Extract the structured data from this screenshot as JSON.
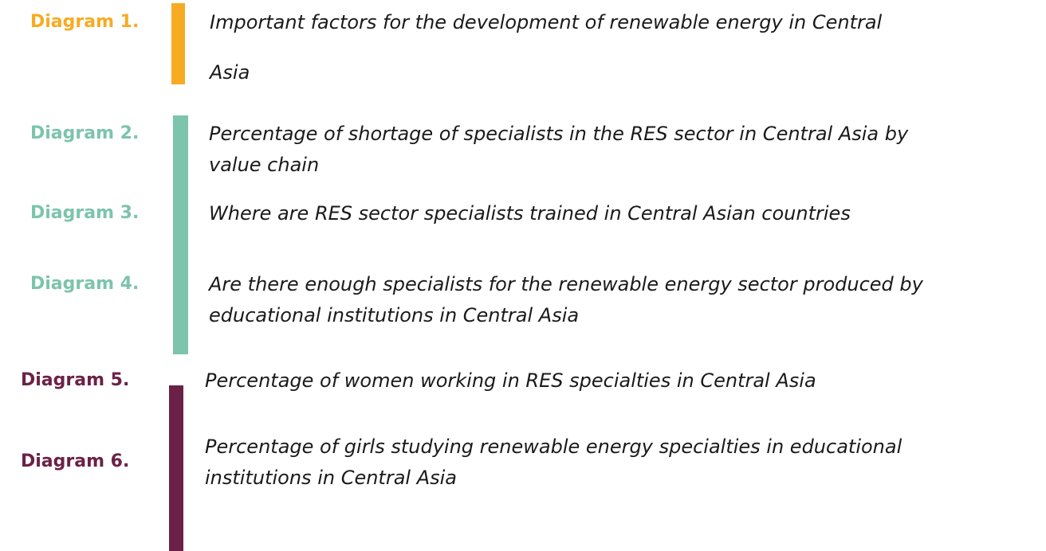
{
  "items": [
    {
      "label": "Diagram 1.",
      "title": [
        "Important factors for the development of renewable energy in Central",
        "Asia"
      ]
    },
    {
      "label": "Diagram 2.",
      "title": [
        "Percentage of shortage of specialists in the RES sector in Central Asia by",
        "value chain"
      ]
    },
    {
      "label": "Diagram 3.",
      "title": [
        "Where are RES sector specialists trained in Central Asian countries"
      ]
    },
    {
      "label": "Diagram 4.",
      "title": [
        "Are there enough specialists for the renewable energy sector produced by",
        "educational institutions in Central Asia"
      ]
    },
    {
      "label": "Diagram 5.",
      "title": [
        "Percentage of women working in RES specialties in Central Asia"
      ]
    },
    {
      "label": "Diagram 6.",
      "title": [
        "Percentage of girls studying renewable energy specialties in educational",
        "institutions in Central Asia"
      ]
    }
  ]
}
